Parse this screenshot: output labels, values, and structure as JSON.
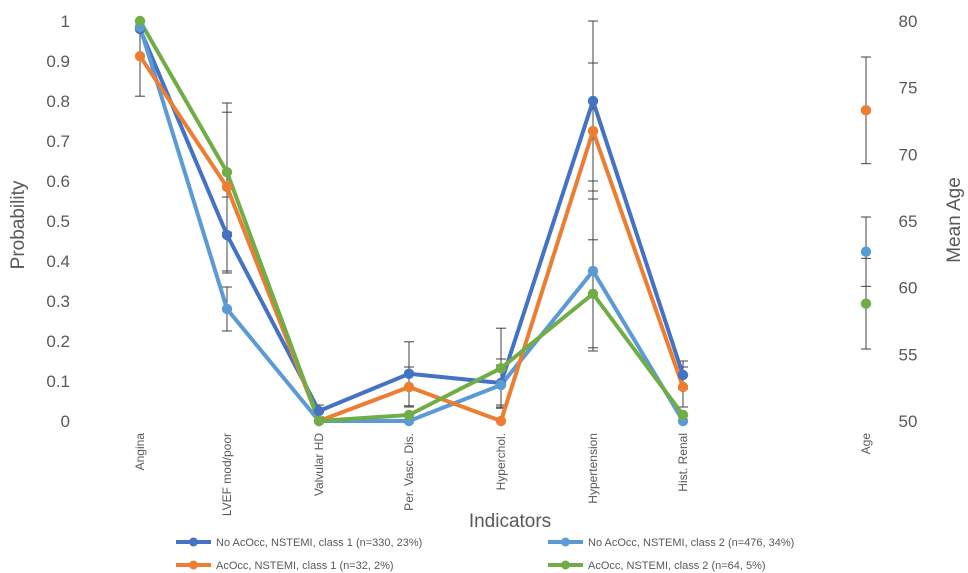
{
  "chart_data": {
    "type": "line",
    "xlabel": "Indicators",
    "ylabel": "Probability",
    "y2label": "Mean Age",
    "ylim": [
      0,
      1
    ],
    "y2lim": [
      50,
      80
    ],
    "yticks": [
      "0",
      "0.1",
      "0.2",
      "0.3",
      "0.4",
      "0.5",
      "0.6",
      "0.7",
      "0.8",
      "0.9",
      "1"
    ],
    "y2ticks": [
      "50",
      "55",
      "60",
      "65",
      "70",
      "75",
      "80"
    ],
    "categories": [
      "Angina",
      "LVEF mod/poor",
      "Valvular HD",
      "Per. Vasc. Dis.",
      "Hyperchol.",
      "Hypertension",
      "Hist. Renal"
    ],
    "age_category": "Age",
    "grid": false,
    "legend_position": "bottom",
    "series": [
      {
        "name": "No AcOcc, NSTEMI, class 1 (n=330, 23%)",
        "color": "#4472C4",
        "values": [
          0.98,
          0.465,
          0.025,
          0.118,
          0.095,
          0.8,
          0.115
        ],
        "errors": [
          null,
          0.095,
          0.015,
          0.08,
          0.06,
          0.2,
          0.035
        ],
        "age": null,
        "age_error": null
      },
      {
        "name": "No AcOcc, NSTEMI, class 2 (n=476, 34%)",
        "color": "#5B9BD5",
        "values": [
          0.985,
          0.28,
          0.0,
          0.0,
          0.09,
          0.375,
          0.0
        ],
        "errors": [
          null,
          0.055,
          null,
          null,
          0.05,
          0.2,
          null
        ],
        "age": 62.7,
        "age_error": 2.6
      },
      {
        "name": "AcOcc, NSTEMI, class 1 (n=32, 2%)",
        "color": "#ED7D31",
        "values": [
          0.912,
          0.585,
          0.0,
          0.085,
          0.0,
          0.725,
          0.085
        ],
        "errors": [
          0.1,
          0.21,
          null,
          0.05,
          null,
          0.17,
          0.05
        ],
        "age": 73.3,
        "age_error": 4
      },
      {
        "name": "AcOcc, NSTEMI, class 2 (n=64, 5%)",
        "color": "#70AD47",
        "values": [
          1.0,
          0.622,
          0.0,
          0.015,
          0.132,
          0.318,
          0.015
        ],
        "errors": [
          null,
          0.15,
          null,
          null,
          0.1,
          0.135,
          null
        ],
        "age": 58.8,
        "age_error": 3.4
      }
    ]
  }
}
